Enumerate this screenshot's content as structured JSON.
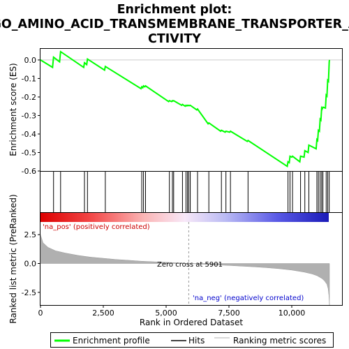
{
  "title_lines": [
    "Enrichment plot:",
    "GO_AMINO_ACID_TRANSMEMBRANE_TRANSPORTER_A",
    "CTIVITY"
  ],
  "chart_data": {
    "type": "line",
    "ylabel_top": "Enrichment score (ES)",
    "ylabel_bottom": "Ranked list metric (PreRanked)",
    "xlabel": "Rank in Ordered Dataset",
    "x_range": [
      0,
      12000
    ],
    "x_ticks": [
      0,
      2500,
      5000,
      7500,
      10000
    ],
    "x_tick_labels": [
      "0",
      "2,500",
      "5,000",
      "7,500",
      "10,000"
    ],
    "es_ylim": [
      -0.6,
      0.06
    ],
    "es_ticks": [
      0.0,
      -0.1,
      -0.2,
      -0.3,
      -0.4,
      -0.5,
      -0.6
    ],
    "es_tick_labels": [
      "0.0",
      "-0.1",
      "-0.2",
      "-0.3",
      "-0.4",
      "-0.5",
      "-0.6"
    ],
    "metric_ylim": [
      -3.6,
      3.6
    ],
    "metric_ticks": [
      2.5,
      0.0,
      -2.5
    ],
    "metric_tick_labels": [
      "2.5",
      "0.0",
      "-2.5"
    ],
    "zero_cross_rank": 5901,
    "zero_cross_label": "Zero cross at 5901",
    "pos_label": "'na_pos' (positively correlated)",
    "neg_label": "'na_neg' (negatively correlated)",
    "total_ranks": 11500,
    "hits": [
      520,
      800,
      1750,
      1870,
      2580,
      4030,
      4100,
      4180,
      5130,
      5250,
      5300,
      5650,
      5790,
      5850,
      5900,
      5960,
      6250,
      6700,
      7200,
      7380,
      7560,
      8260,
      9850,
      9930,
      10030,
      10350,
      10520,
      10680,
      11000,
      11060,
      11130,
      11190,
      11240,
      11370,
      11430,
      11490
    ],
    "es_series": {
      "name": "Enrichment profile",
      "x": [
        0,
        480,
        520,
        760,
        800,
        1720,
        1750,
        1840,
        1870,
        2550,
        2580,
        4000,
        4030,
        4070,
        4100,
        4150,
        4180,
        5100,
        5130,
        5220,
        5250,
        5270,
        5300,
        5620,
        5650,
        5760,
        5790,
        5820,
        5850,
        5870,
        5900,
        5930,
        5960,
        6220,
        6250,
        6670,
        6700,
        7170,
        7200,
        7350,
        7380,
        7530,
        7560,
        8230,
        8260,
        9820,
        9850,
        9900,
        9930,
        10000,
        10030,
        10320,
        10350,
        10490,
        10520,
        10650,
        10680,
        10970,
        11000,
        11030,
        11060,
        11100,
        11130,
        11160,
        11190,
        11210,
        11240,
        11340,
        11370,
        11400,
        11430,
        11460,
        11490,
        11500
      ],
      "y": [
        0.0,
        -0.04,
        0.015,
        -0.01,
        0.045,
        -0.04,
        -0.015,
        -0.025,
        0.005,
        -0.055,
        -0.035,
        -0.155,
        -0.145,
        -0.15,
        -0.14,
        -0.145,
        -0.14,
        -0.225,
        -0.22,
        -0.225,
        -0.22,
        -0.222,
        -0.22,
        -0.245,
        -0.24,
        -0.25,
        -0.245,
        -0.248,
        -0.245,
        -0.247,
        -0.245,
        -0.247,
        -0.245,
        -0.27,
        -0.265,
        -0.345,
        -0.34,
        -0.385,
        -0.38,
        -0.39,
        -0.385,
        -0.39,
        -0.385,
        -0.44,
        -0.435,
        -0.575,
        -0.55,
        -0.555,
        -0.52,
        -0.525,
        -0.52,
        -0.55,
        -0.52,
        -0.525,
        -0.49,
        -0.5,
        -0.46,
        -0.48,
        -0.43,
        -0.435,
        -0.38,
        -0.385,
        -0.32,
        -0.325,
        -0.26,
        -0.265,
        -0.255,
        -0.26,
        -0.19,
        -0.195,
        -0.11,
        -0.115,
        -0.01,
        0.0
      ]
    },
    "metric_profile": {
      "x": [
        0,
        100,
        300,
        600,
        1000,
        1500,
        2000,
        2500,
        3000,
        3500,
        4000,
        4500,
        5000,
        5500,
        5901,
        6500,
        7000,
        7500,
        8000,
        8500,
        9000,
        9500,
        10000,
        10500,
        10800,
        11000,
        11200,
        11300,
        11400,
        11450,
        11480,
        11500
      ],
      "y": [
        2.5,
        1.8,
        1.4,
        1.1,
        0.9,
        0.7,
        0.55,
        0.45,
        0.35,
        0.28,
        0.2,
        0.15,
        0.1,
        0.05,
        0.0,
        -0.07,
        -0.12,
        -0.17,
        -0.23,
        -0.29,
        -0.36,
        -0.45,
        -0.57,
        -0.75,
        -0.9,
        -1.05,
        -1.3,
        -1.5,
        -1.8,
        -2.2,
        -2.8,
        -3.6
      ]
    },
    "legend": [
      {
        "label": "Enrichment profile",
        "color": "#00ff00"
      },
      {
        "label": "Hits",
        "color": "#000000"
      },
      {
        "label": "Ranking metric scores",
        "color": "#b0b0b0"
      }
    ],
    "colors": {
      "es_line": "#00ff00",
      "pos_text": "#cc0000",
      "neg_text": "#0000cc",
      "metric_fill": "#b0b0b0",
      "zero_line": "#999999"
    }
  }
}
